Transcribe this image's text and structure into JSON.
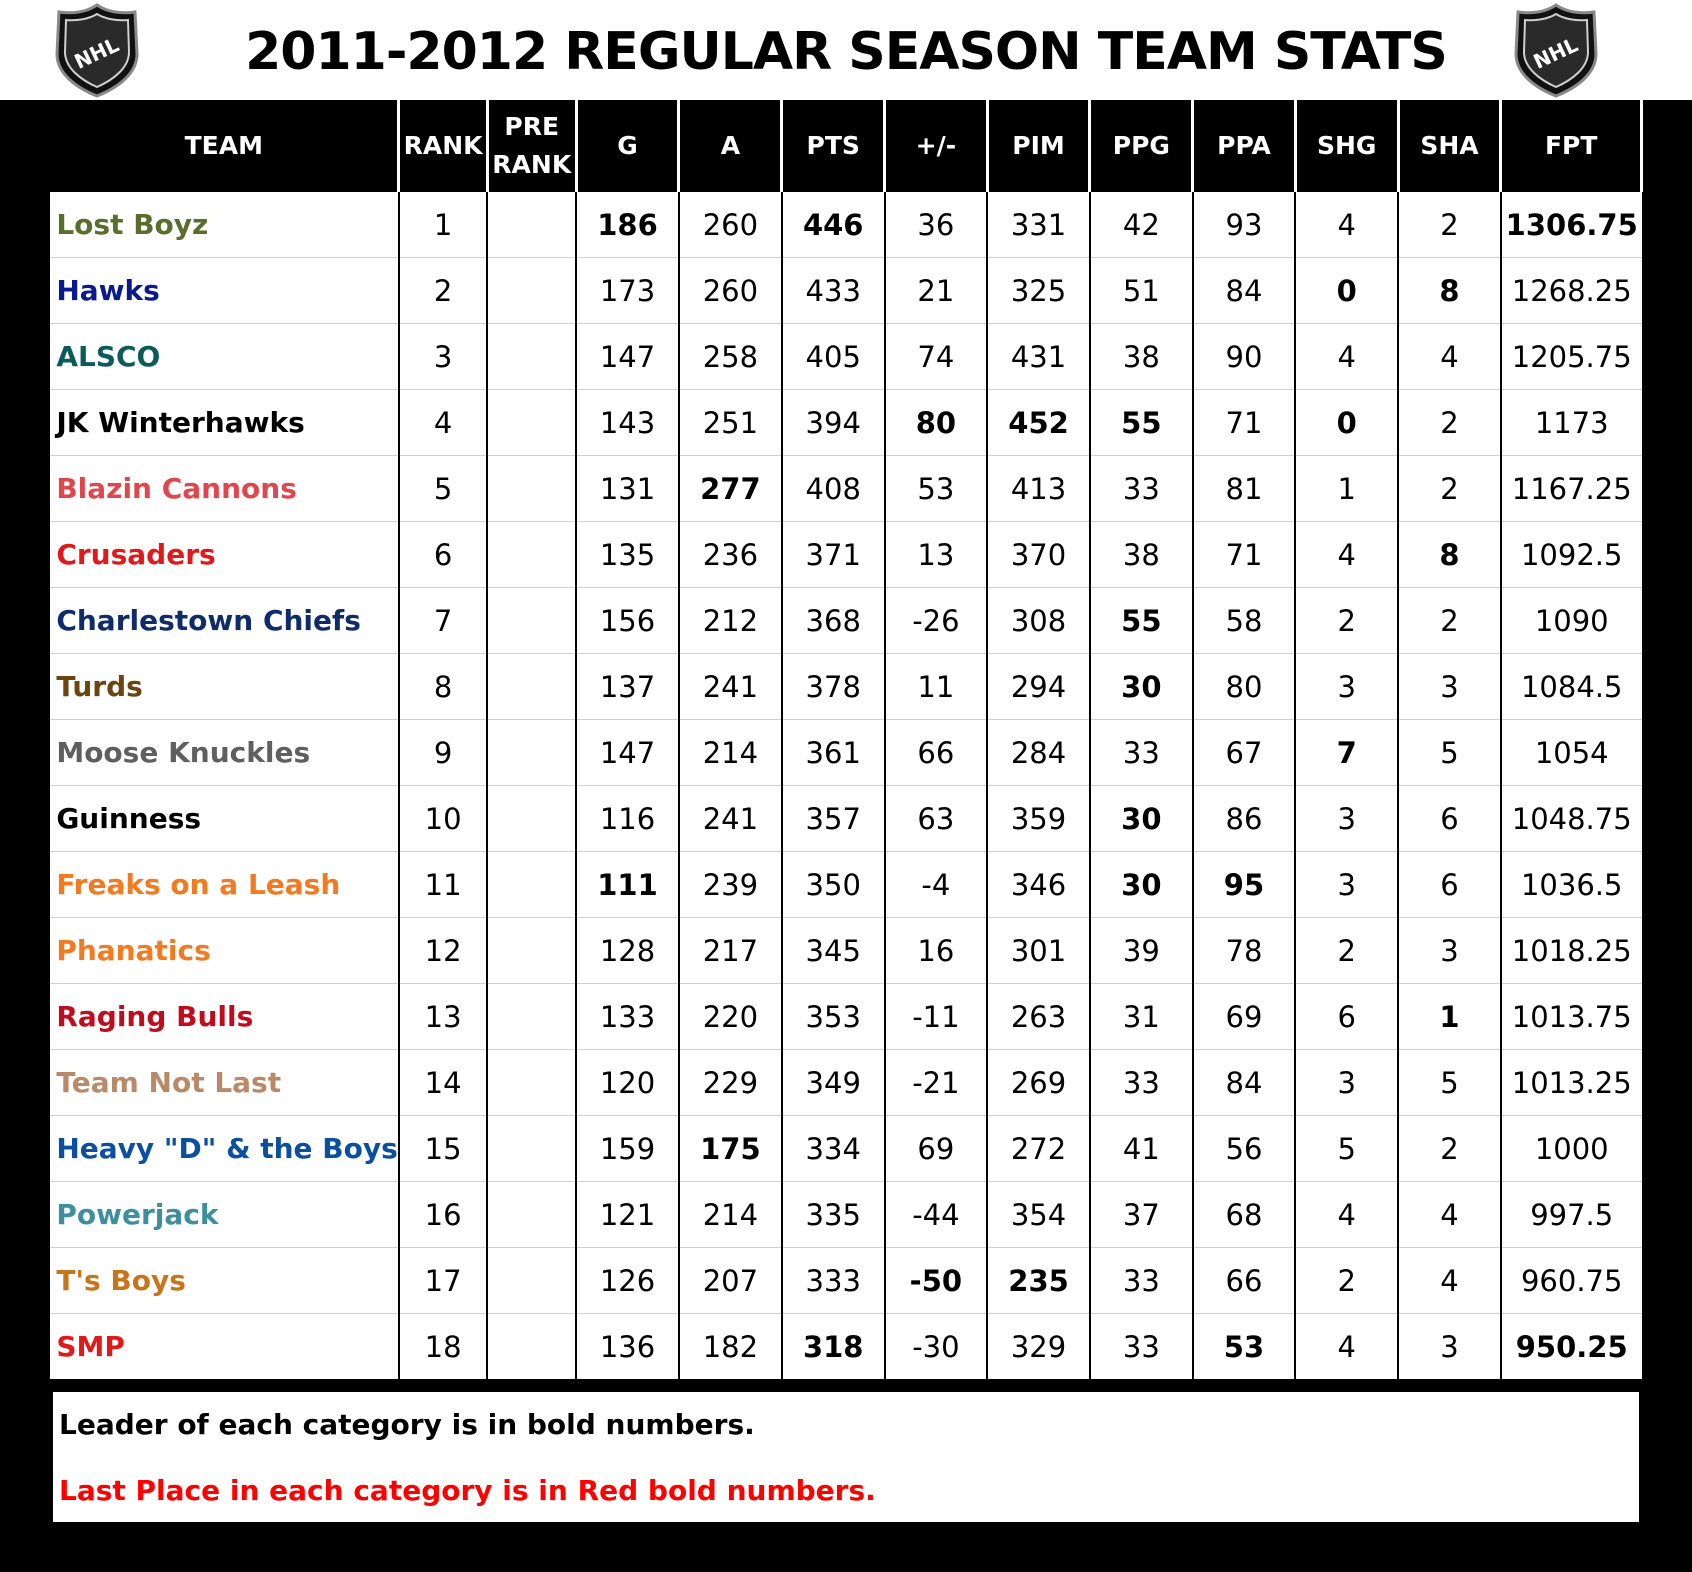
{
  "title": "2011-2012 REGULAR SEASON TEAM STATS",
  "logo_text": "NHL",
  "colors": {
    "leader": "#000000",
    "last_place": "#ff0000",
    "background": "#000000"
  },
  "columns": [
    "TEAM",
    "RANK",
    "PRE\nRANK",
    "G",
    "A",
    "PTS",
    "+/-",
    "PIM",
    "PPG",
    "PPA",
    "SHG",
    "SHA",
    "FPT"
  ],
  "rows": [
    {
      "team": "Lost Boyz",
      "color": "#5a6e2c",
      "rank": "1",
      "pre_rank": "",
      "g": "186",
      "a": "260",
      "pts": "446",
      "pm": "36",
      "pim": "331",
      "ppg": "42",
      "ppa": "93",
      "shg": "4",
      "sha": "2",
      "fpt": "1306.75",
      "styles": {
        "g": "b",
        "pts": "b",
        "fpt": "b"
      }
    },
    {
      "team": "Hawks",
      "color": "#0a1a8c",
      "rank": "2",
      "pre_rank": "",
      "g": "173",
      "a": "260",
      "pts": "433",
      "pm": "21",
      "pim": "325",
      "ppg": "51",
      "ppa": "84",
      "shg": "0",
      "sha": "8",
      "fpt": "1268.25",
      "styles": {
        "shg": "r",
        "sha": "b"
      }
    },
    {
      "team": "ALSCO",
      "color": "#0c5a5a",
      "rank": "3",
      "pre_rank": "",
      "g": "147",
      "a": "258",
      "pts": "405",
      "pm": "74",
      "pim": "431",
      "ppg": "38",
      "ppa": "90",
      "shg": "4",
      "sha": "4",
      "fpt": "1205.75",
      "styles": {}
    },
    {
      "team": "JK Winterhawks",
      "color": "#000000",
      "rank": "4",
      "pre_rank": "",
      "g": "143",
      "a": "251",
      "pts": "394",
      "pm": "80",
      "pim": "452",
      "ppg": "55",
      "ppa": "71",
      "shg": "0",
      "sha": "2",
      "fpt": "1173",
      "styles": {
        "pm": "b",
        "pim": "b",
        "ppg": "b",
        "shg": "r"
      }
    },
    {
      "team": "Blazin Cannons",
      "color": "#e0464e",
      "rank": "5",
      "pre_rank": "",
      "g": "131",
      "a": "277",
      "pts": "408",
      "pm": "53",
      "pim": "413",
      "ppg": "33",
      "ppa": "81",
      "shg": "1",
      "sha": "2",
      "fpt": "1167.25",
      "styles": {
        "a": "b"
      }
    },
    {
      "team": "Crusaders",
      "color": "#e01a1a",
      "rank": "6",
      "pre_rank": "",
      "g": "135",
      "a": "236",
      "pts": "371",
      "pm": "13",
      "pim": "370",
      "ppg": "38",
      "ppa": "71",
      "shg": "4",
      "sha": "8",
      "fpt": "1092.5",
      "styles": {
        "sha": "b"
      }
    },
    {
      "team": "Charlestown Chiefs",
      "color": "#0f2c6a",
      "rank": "7",
      "pre_rank": "",
      "g": "156",
      "a": "212",
      "pts": "368",
      "pm": "-26",
      "pim": "308",
      "ppg": "55",
      "ppa": "58",
      "shg": "2",
      "sha": "2",
      "fpt": "1090",
      "styles": {
        "ppg": "b"
      }
    },
    {
      "team": "Turds",
      "color": "#6b4410",
      "rank": "8",
      "pre_rank": "",
      "g": "137",
      "a": "241",
      "pts": "378",
      "pm": "11",
      "pim": "294",
      "ppg": "30",
      "ppa": "80",
      "shg": "3",
      "sha": "3",
      "fpt": "1084.5",
      "styles": {
        "ppg": "r"
      }
    },
    {
      "team": "Moose Knuckles",
      "color": "#5f5f5f",
      "rank": "9",
      "pre_rank": "",
      "g": "147",
      "a": "214",
      "pts": "361",
      "pm": "66",
      "pim": "284",
      "ppg": "33",
      "ppa": "67",
      "shg": "7",
      "sha": "5",
      "fpt": "1054",
      "styles": {
        "shg": "b"
      }
    },
    {
      "team": "Guinness",
      "color": "#000000",
      "rank": "10",
      "pre_rank": "",
      "g": "116",
      "a": "241",
      "pts": "357",
      "pm": "63",
      "pim": "359",
      "ppg": "30",
      "ppa": "86",
      "shg": "3",
      "sha": "6",
      "fpt": "1048.75",
      "styles": {
        "ppg": "r"
      }
    },
    {
      "team": "Freaks on a Leash",
      "color": "#f47a20",
      "rank": "11",
      "pre_rank": "",
      "g": "111",
      "a": "239",
      "pts": "350",
      "pm": "-4",
      "pim": "346",
      "ppg": "30",
      "ppa": "95",
      "shg": "3",
      "sha": "6",
      "fpt": "1036.5",
      "styles": {
        "g": "r",
        "ppg": "r",
        "ppa": "b"
      }
    },
    {
      "team": "Phanatics",
      "color": "#f47a20",
      "rank": "12",
      "pre_rank": "",
      "g": "128",
      "a": "217",
      "pts": "345",
      "pm": "16",
      "pim": "301",
      "ppg": "39",
      "ppa": "78",
      "shg": "2",
      "sha": "3",
      "fpt": "1018.25",
      "styles": {}
    },
    {
      "team": "Raging Bulls",
      "color": "#c00d1e",
      "rank": "13",
      "pre_rank": "",
      "g": "133",
      "a": "220",
      "pts": "353",
      "pm": "-11",
      "pim": "263",
      "ppg": "31",
      "ppa": "69",
      "shg": "6",
      "sha": "1",
      "fpt": "1013.75",
      "styles": {
        "sha": "r"
      }
    },
    {
      "team": "Team Not Last",
      "color": "#b98a6a",
      "rank": "14",
      "pre_rank": "",
      "g": "120",
      "a": "229",
      "pts": "349",
      "pm": "-21",
      "pim": "269",
      "ppg": "33",
      "ppa": "84",
      "shg": "3",
      "sha": "5",
      "fpt": "1013.25",
      "styles": {}
    },
    {
      "team": "Heavy \"D\" & the Boys",
      "color": "#0a4fa0",
      "rank": "15",
      "pre_rank": "",
      "g": "159",
      "a": "175",
      "pts": "334",
      "pm": "69",
      "pim": "272",
      "ppg": "41",
      "ppa": "56",
      "shg": "5",
      "sha": "2",
      "fpt": "1000",
      "styles": {
        "a": "r"
      }
    },
    {
      "team": "Powerjack",
      "color": "#3d8fa0",
      "rank": "16",
      "pre_rank": "",
      "g": "121",
      "a": "214",
      "pts": "335",
      "pm": "-44",
      "pim": "354",
      "ppg": "37",
      "ppa": "68",
      "shg": "4",
      "sha": "4",
      "fpt": "997.5",
      "styles": {}
    },
    {
      "team": "T's Boys",
      "color": "#c8741a",
      "rank": "17",
      "pre_rank": "",
      "g": "126",
      "a": "207",
      "pts": "333",
      "pm": "-50",
      "pim": "235",
      "ppg": "33",
      "ppa": "66",
      "shg": "2",
      "sha": "4",
      "fpt": "960.75",
      "styles": {
        "pm": "r",
        "pim": "r"
      }
    },
    {
      "team": "SMP",
      "color": "#e01a1a",
      "rank": "18",
      "pre_rank": "",
      "g": "136",
      "a": "182",
      "pts": "318",
      "pm": "-30",
      "pim": "329",
      "ppg": "33",
      "ppa": "53",
      "shg": "4",
      "sha": "3",
      "fpt": "950.25",
      "styles": {
        "pts": "r",
        "ppa": "r",
        "fpt": "r"
      }
    }
  ],
  "notes": {
    "leader": "Leader of each category is in bold numbers.",
    "last": "Last Place in each category is in Red bold numbers."
  }
}
